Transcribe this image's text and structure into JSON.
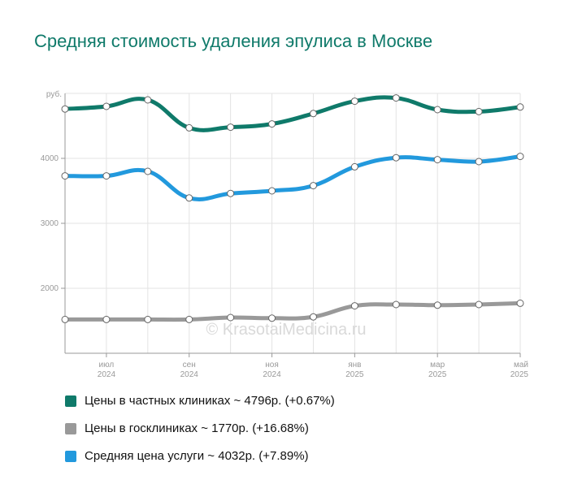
{
  "title": "Средняя стоимость удаления эпулиса в Москве",
  "watermark": "© KrasotaiMedicina.ru",
  "chart_data": {
    "type": "line",
    "ylabel": "руб.",
    "ylim": [
      1000,
      5000
    ],
    "y_ticks": [
      2000,
      3000,
      4000
    ],
    "grid": true,
    "x_months": [
      "2024-06",
      "2024-07",
      "2024-08",
      "2024-09",
      "2024-10",
      "2024-11",
      "2024-12",
      "2025-01",
      "2025-02",
      "2025-03",
      "2025-04",
      "2025-05"
    ],
    "x_tick_labels": [
      {
        "index": 1,
        "month": "июл",
        "year": "2024"
      },
      {
        "index": 3,
        "month": "сен",
        "year": "2024"
      },
      {
        "index": 5,
        "month": "ноя",
        "year": "2024"
      },
      {
        "index": 7,
        "month": "янв",
        "year": "2025"
      },
      {
        "index": 9,
        "month": "мар",
        "year": "2025"
      },
      {
        "index": 11,
        "month": "май",
        "year": "2025"
      }
    ],
    "series": [
      {
        "key": "private",
        "color": "#0f7a6a",
        "values": [
          4760,
          4800,
          4900,
          4470,
          4480,
          4530,
          4690,
          4880,
          4930,
          4750,
          4720,
          4790
        ]
      },
      {
        "key": "public",
        "color": "#999999",
        "values": [
          1520,
          1520,
          1520,
          1520,
          1550,
          1540,
          1560,
          1730,
          1750,
          1740,
          1750,
          1770
        ]
      },
      {
        "key": "average",
        "color": "#2299dd",
        "values": [
          3730,
          3730,
          3800,
          3390,
          3460,
          3500,
          3580,
          3870,
          4010,
          3980,
          3950,
          4030
        ]
      }
    ]
  },
  "legend": [
    {
      "label": "Цены в частных клиниках ~ 4796р. (+0.67%)",
      "color": "#0f7a6a"
    },
    {
      "label": "Цены в госклиниках ~ 1770р. (+16.68%)",
      "color": "#999999"
    },
    {
      "label": "Средняя цена услуги ~ 4032р. (+7.89%)",
      "color": "#2299dd"
    }
  ]
}
